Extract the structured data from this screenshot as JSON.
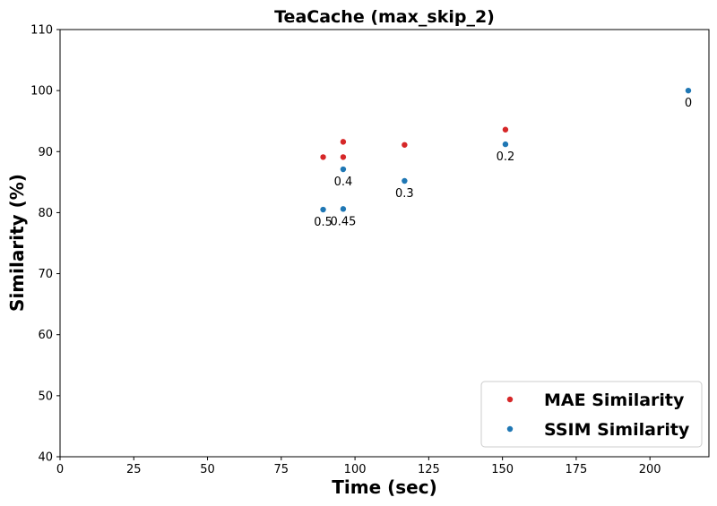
{
  "chart_data": {
    "type": "scatter",
    "title": "TeaCache (max_skip_2)",
    "xlabel": "Time (sec)",
    "ylabel": "Similarity (%)",
    "xlim": [
      0,
      220
    ],
    "ylim": [
      40,
      110
    ],
    "xticks": [
      0,
      25,
      50,
      75,
      100,
      125,
      150,
      175,
      200
    ],
    "yticks": [
      40,
      50,
      60,
      70,
      80,
      90,
      100,
      110
    ],
    "grid": false,
    "legend_position": "bottom-right",
    "series": [
      {
        "name": "MAE Similarity",
        "color": "#d62728",
        "points": [
          {
            "x": 89.2,
            "y": 89.1
          },
          {
            "x": 96.0,
            "y": 91.6
          },
          {
            "x": 96.0,
            "y": 89.1
          },
          {
            "x": 116.8,
            "y": 91.1
          },
          {
            "x": 151.0,
            "y": 93.6
          }
        ]
      },
      {
        "name": "SSIM Similarity",
        "color": "#1f77b4",
        "points": [
          {
            "x": 89.2,
            "y": 80.5,
            "label": "0.5"
          },
          {
            "x": 96.0,
            "y": 80.6,
            "label": "0.45"
          },
          {
            "x": 96.0,
            "y": 87.1,
            "label": "0.4"
          },
          {
            "x": 116.8,
            "y": 85.2,
            "label": "0.3"
          },
          {
            "x": 151.0,
            "y": 91.2,
            "label": "0.2"
          },
          {
            "x": 213.0,
            "y": 100.0,
            "label": "0"
          }
        ]
      }
    ]
  }
}
